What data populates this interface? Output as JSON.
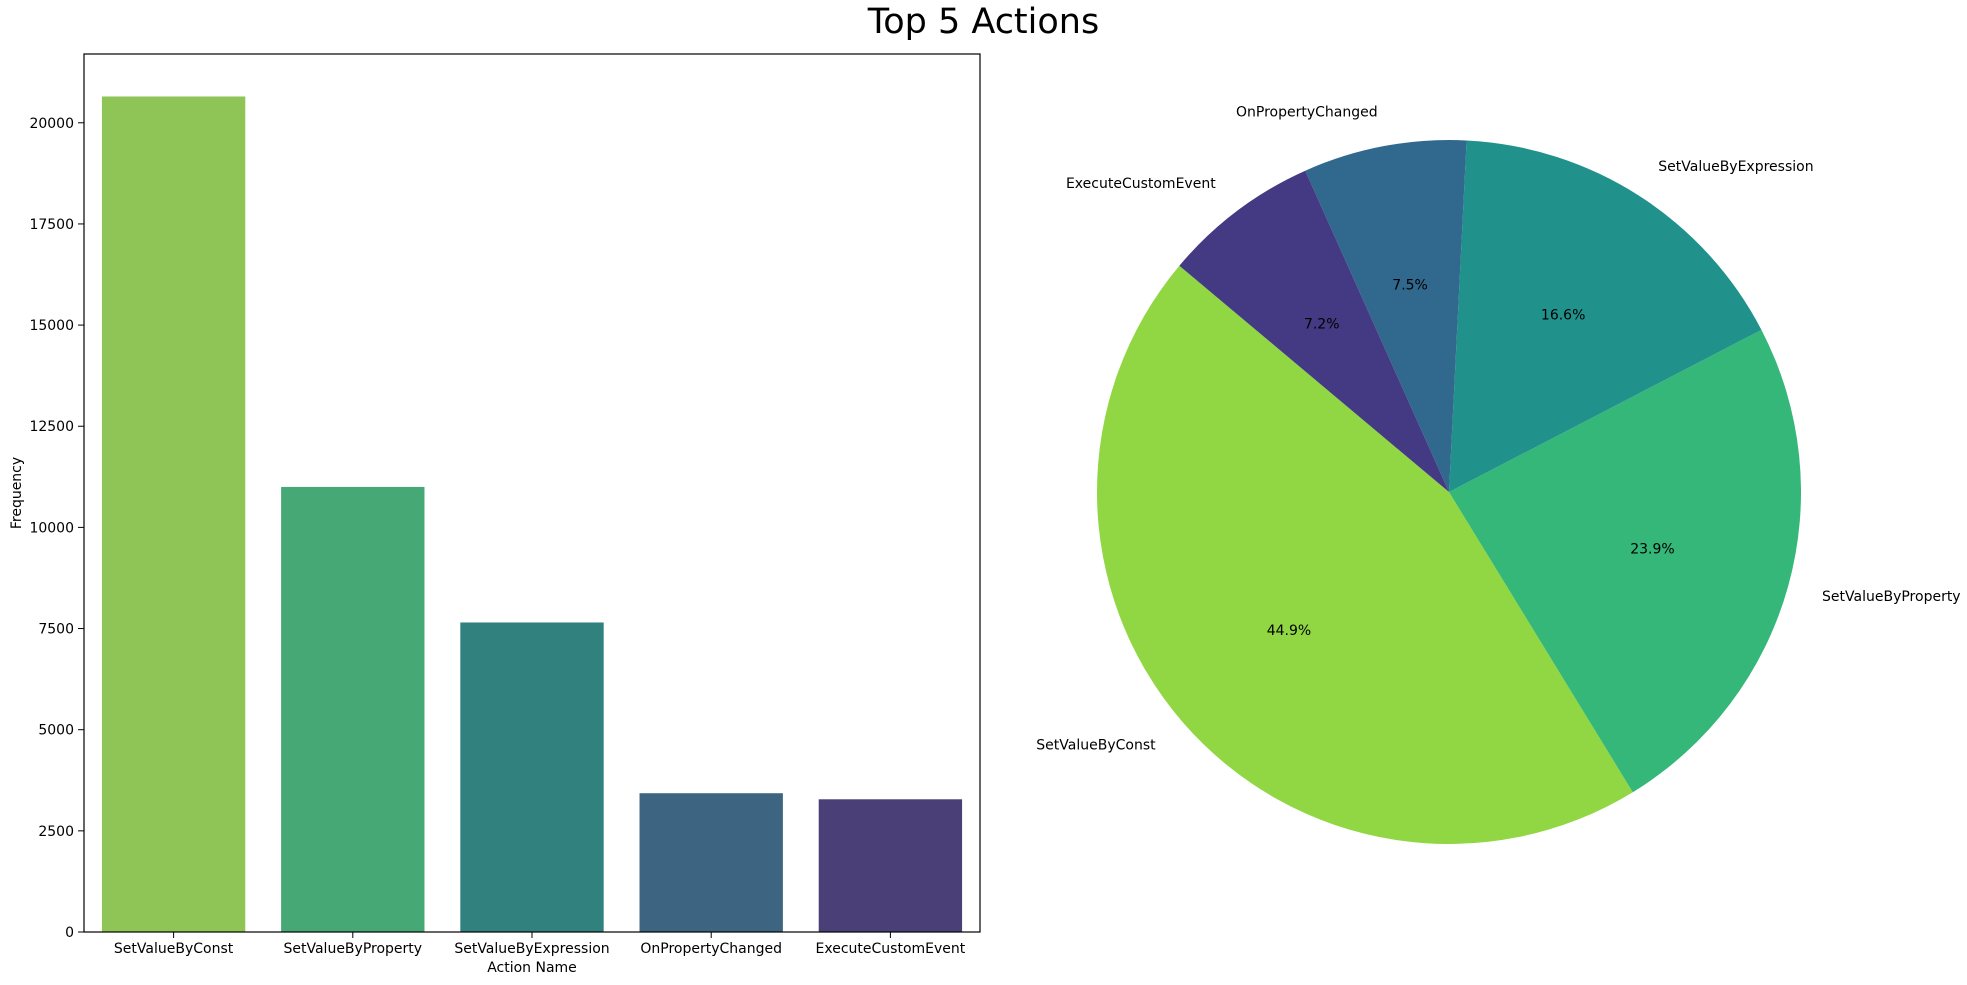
{
  "figure": {
    "title": "Top 5 Actions"
  },
  "chart_data": [
    {
      "type": "bar",
      "title": "",
      "xlabel": "Action Name",
      "ylabel": "Frequency",
      "categories": [
        "SetValueByConst",
        "SetValueByProperty",
        "SetValueByExpression",
        "OnPropertyChanged",
        "ExecuteCustomEvent"
      ],
      "values": [
        20650,
        11000,
        7650,
        3430,
        3280
      ],
      "ylim": [
        0,
        21700
      ],
      "yticks": [
        0,
        2500,
        5000,
        7500,
        10000,
        12500,
        15000,
        17500,
        20000
      ],
      "colors": [
        "#8fc556",
        "#46a875",
        "#31817f",
        "#3d6581",
        "#4a4077"
      ],
      "grid": false
    },
    {
      "type": "pie",
      "title": "",
      "labels": [
        "SetValueByConst",
        "SetValueByProperty",
        "SetValueByExpression",
        "OnPropertyChanged",
        "ExecuteCustomEvent"
      ],
      "values": [
        44.9,
        23.9,
        16.6,
        7.5,
        7.2
      ],
      "percent_labels": [
        "44.9%",
        "23.9%",
        "16.6%",
        "7.5%",
        "7.2%"
      ],
      "start_angle_deg": 140,
      "colors": [
        "#90d743",
        "#35b779",
        "#21918c",
        "#31688e",
        "#443983"
      ]
    }
  ]
}
